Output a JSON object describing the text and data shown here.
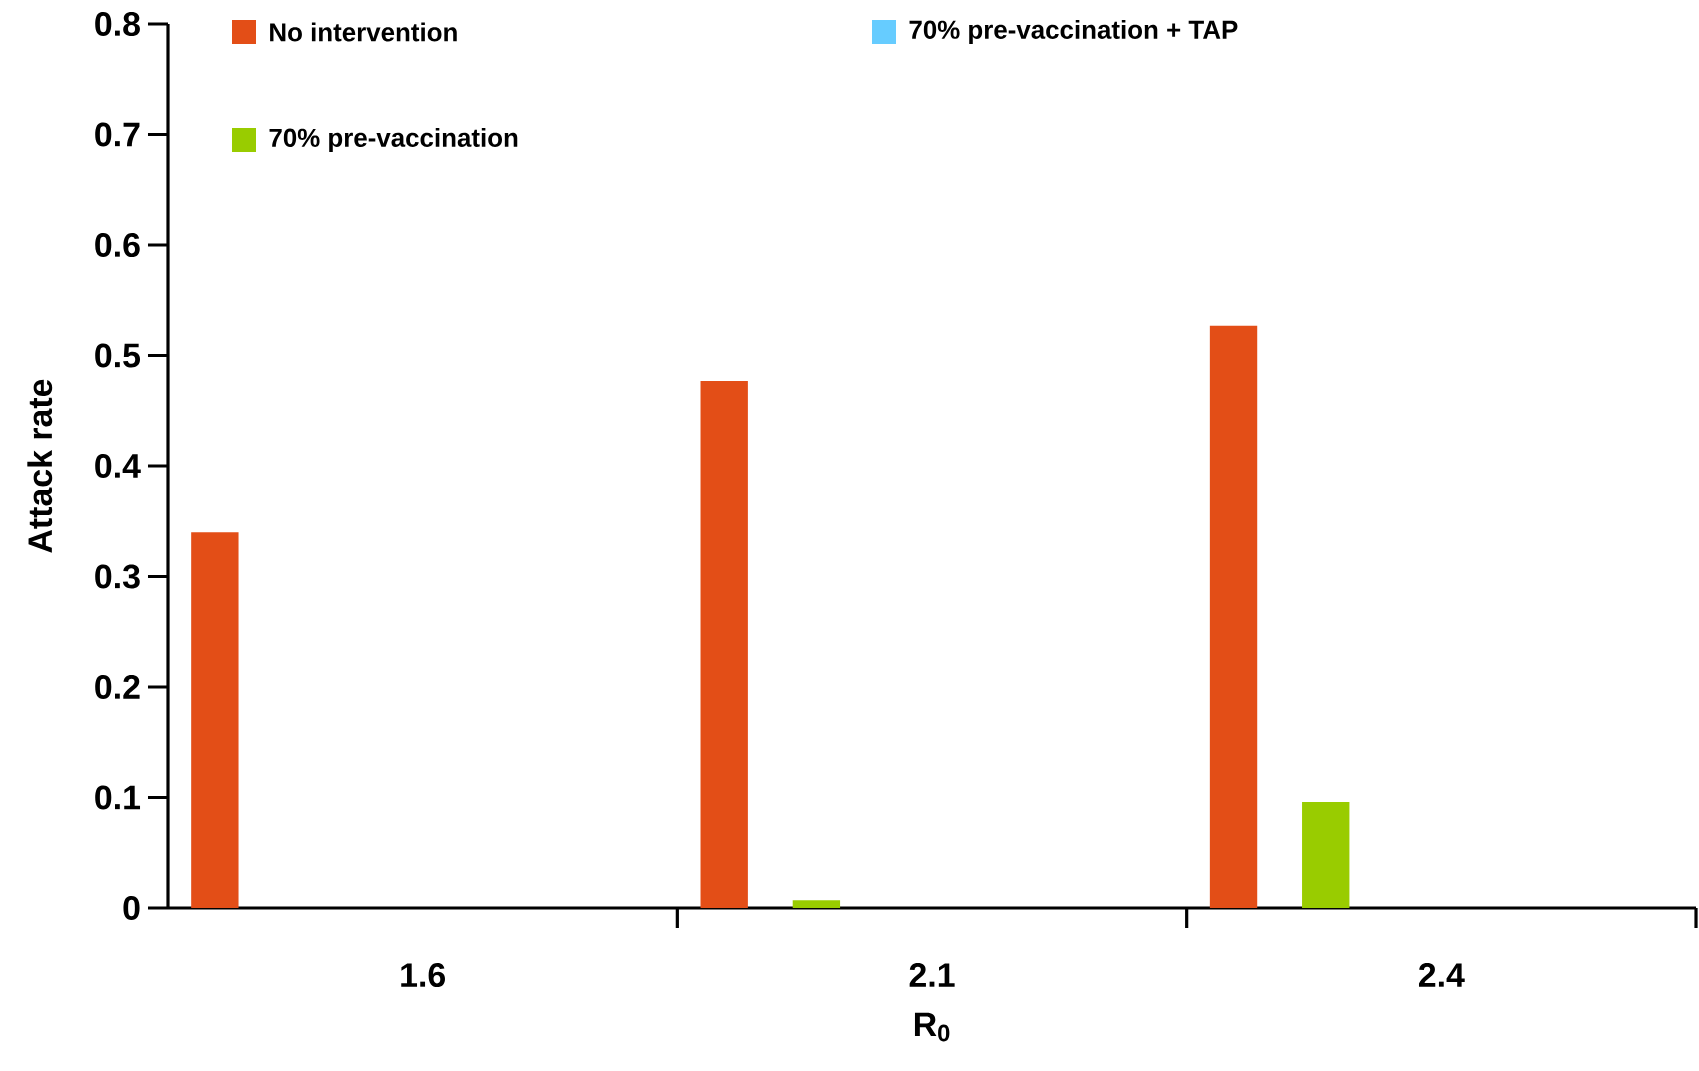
{
  "chart_data": {
    "type": "bar",
    "xlabel": "R$_{0}$",
    "ylabel": "Attack rate",
    "categories": [
      "1.6",
      "2.1",
      "2.4"
    ],
    "series": [
      {
        "name": "No intervention",
        "color": "#e34e17",
        "values": [
          0.34,
          0.477,
          0.527
        ]
      },
      {
        "name": "70% pre-vaccination",
        "color": "#99cc00",
        "values": [
          null,
          0.007,
          0.096
        ]
      },
      {
        "name": "70% pre-vaccination + TAP",
        "color": "#66ccff",
        "values": [
          null,
          null,
          null
        ]
      }
    ],
    "ylim": [
      0,
      0.8
    ],
    "yticks": [
      0,
      0.1,
      0.2,
      0.3,
      0.4,
      0.5,
      0.6,
      0.7,
      0.8
    ],
    "legend": "top",
    "grid": false
  }
}
